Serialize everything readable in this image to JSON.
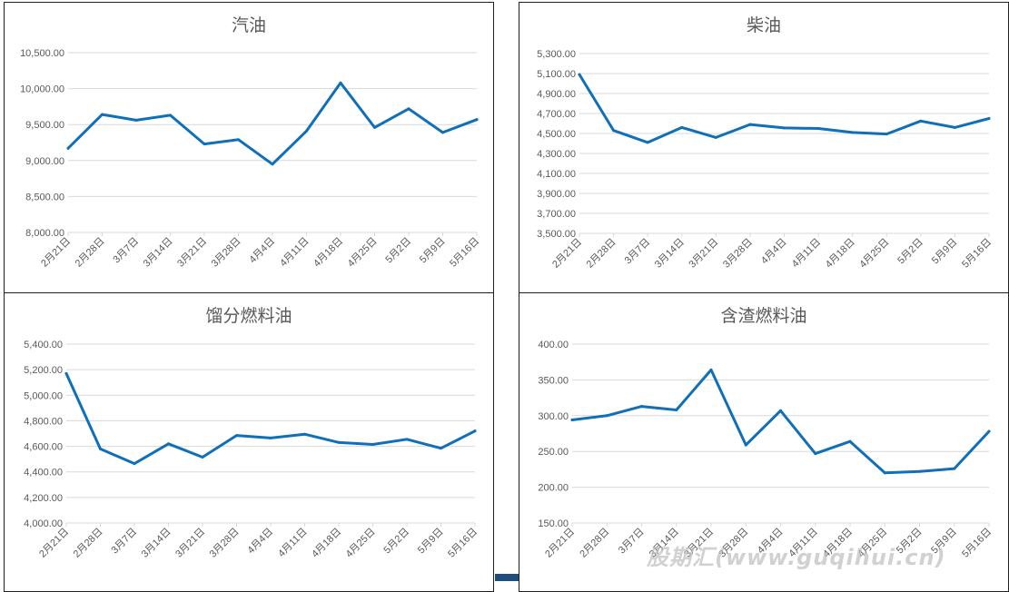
{
  "chart_data": [
    {
      "type": "line",
      "title": "汽油",
      "categories": [
        "2月21日",
        "2月28日",
        "3月7日",
        "3月14日",
        "3月21日",
        "3月28日",
        "4月4日",
        "4月11日",
        "4月18日",
        "4月25日",
        "5月2日",
        "5月9日",
        "5月16日"
      ],
      "values": [
        9170,
        9640,
        9560,
        9630,
        9230,
        9290,
        8950,
        9410,
        10080,
        9460,
        9720,
        9390,
        9570
      ],
      "ylim": [
        8000,
        10500
      ],
      "yticks": [
        "8,000.00",
        "8,500.00",
        "9,000.00",
        "9,500.00",
        "10,000.00",
        "10,500.00"
      ],
      "line_color": "#0f6fb8",
      "grid": true
    },
    {
      "type": "line",
      "title": "柴油",
      "categories": [
        "2月21日",
        "2月28日",
        "3月7日",
        "3月14日",
        "3月21日",
        "3月28日",
        "4月4日",
        "4月11日",
        "4月18日",
        "4月25日",
        "5月2日",
        "5月9日",
        "5月16日"
      ],
      "values": [
        5090,
        4530,
        4410,
        4560,
        4460,
        4590,
        4555,
        4550,
        4510,
        4495,
        4625,
        4560,
        4650
      ],
      "ylim": [
        3500,
        5300
      ],
      "yticks": [
        "3,500.00",
        "3,700.00",
        "3,900.00",
        "4,100.00",
        "4,300.00",
        "4,500.00",
        "4,700.00",
        "4,900.00",
        "5,100.00",
        "5,300.00"
      ],
      "line_color": "#0f6fb8",
      "grid": true
    },
    {
      "type": "line",
      "title": "馏分燃料油",
      "categories": [
        "2月21日",
        "2月28日",
        "3月7日",
        "3月14日",
        "3月21日",
        "3月28日",
        "4月4日",
        "4月11日",
        "4月18日",
        "4月25日",
        "5月2日",
        "5月9日",
        "5月16日"
      ],
      "values": [
        5170,
        4580,
        4465,
        4620,
        4515,
        4685,
        4665,
        4695,
        4630,
        4615,
        4655,
        4585,
        4720
      ],
      "ylim": [
        4000,
        5400
      ],
      "yticks": [
        "4,000.00",
        "4,200.00",
        "4,400.00",
        "4,600.00",
        "4,800.00",
        "5,000.00",
        "5,200.00",
        "5,400.00"
      ],
      "line_color": "#0f6fb8",
      "grid": true
    },
    {
      "type": "line",
      "title": "含渣燃料油",
      "categories": [
        "2月21日",
        "2月28日",
        "3月7日",
        "3月14日",
        "3月21日",
        "3月28日",
        "4月4日",
        "4月11日",
        "4月18日",
        "4月25日",
        "5月2日",
        "5月9日",
        "5月16日"
      ],
      "values": [
        294,
        300,
        313,
        308,
        364,
        259,
        307,
        247,
        264,
        220,
        222,
        226,
        278
      ],
      "ylim": [
        150,
        400
      ],
      "yticks": [
        "150.00",
        "200.00",
        "250.00",
        "300.00",
        "350.00",
        "400.00"
      ],
      "line_color": "#0f6fb8",
      "grid": true
    }
  ],
  "watermark": "股期汇(www.guqihui.cn)"
}
